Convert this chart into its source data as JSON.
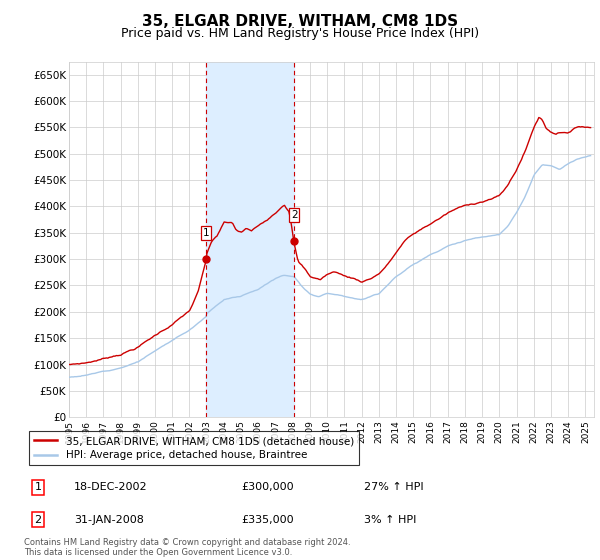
{
  "title": "35, ELGAR DRIVE, WITHAM, CM8 1DS",
  "subtitle": "Price paid vs. HM Land Registry's House Price Index (HPI)",
  "title_fontsize": 11,
  "subtitle_fontsize": 9,
  "ylabel_ticks": [
    "£0",
    "£50K",
    "£100K",
    "£150K",
    "£200K",
    "£250K",
    "£300K",
    "£350K",
    "£400K",
    "£450K",
    "£500K",
    "£550K",
    "£600K",
    "£650K"
  ],
  "ytick_values": [
    0,
    50000,
    100000,
    150000,
    200000,
    250000,
    300000,
    350000,
    400000,
    450000,
    500000,
    550000,
    600000,
    650000
  ],
  "ylim": [
    0,
    675000
  ],
  "xlim_start": 1995.0,
  "xlim_end": 2025.5,
  "xtick_years": [
    1995,
    1996,
    1997,
    1998,
    1999,
    2000,
    2001,
    2002,
    2003,
    2004,
    2005,
    2006,
    2007,
    2008,
    2009,
    2010,
    2011,
    2012,
    2013,
    2014,
    2015,
    2016,
    2017,
    2018,
    2019,
    2020,
    2021,
    2022,
    2023,
    2024,
    2025
  ],
  "sale1_x": 2002.97,
  "sale1_y": 300000,
  "sale1_label": "1",
  "sale2_x": 2008.08,
  "sale2_y": 335000,
  "sale2_label": "2",
  "shade_x1": 2002.97,
  "shade_x2": 2008.08,
  "hpi_color": "#a8c8e8",
  "price_color": "#cc0000",
  "shade_color": "#ddeeff",
  "grid_color": "#cccccc",
  "background_color": "#ffffff",
  "legend_entry1": "35, ELGAR DRIVE, WITHAM, CM8 1DS (detached house)",
  "legend_entry2": "HPI: Average price, detached house, Braintree",
  "table_row1": [
    "1",
    "18-DEC-2002",
    "£300,000",
    "27% ↑ HPI"
  ],
  "table_row2": [
    "2",
    "31-JAN-2008",
    "£335,000",
    "3% ↑ HPI"
  ],
  "footnote": "Contains HM Land Registry data © Crown copyright and database right 2024.\nThis data is licensed under the Open Government Licence v3.0."
}
